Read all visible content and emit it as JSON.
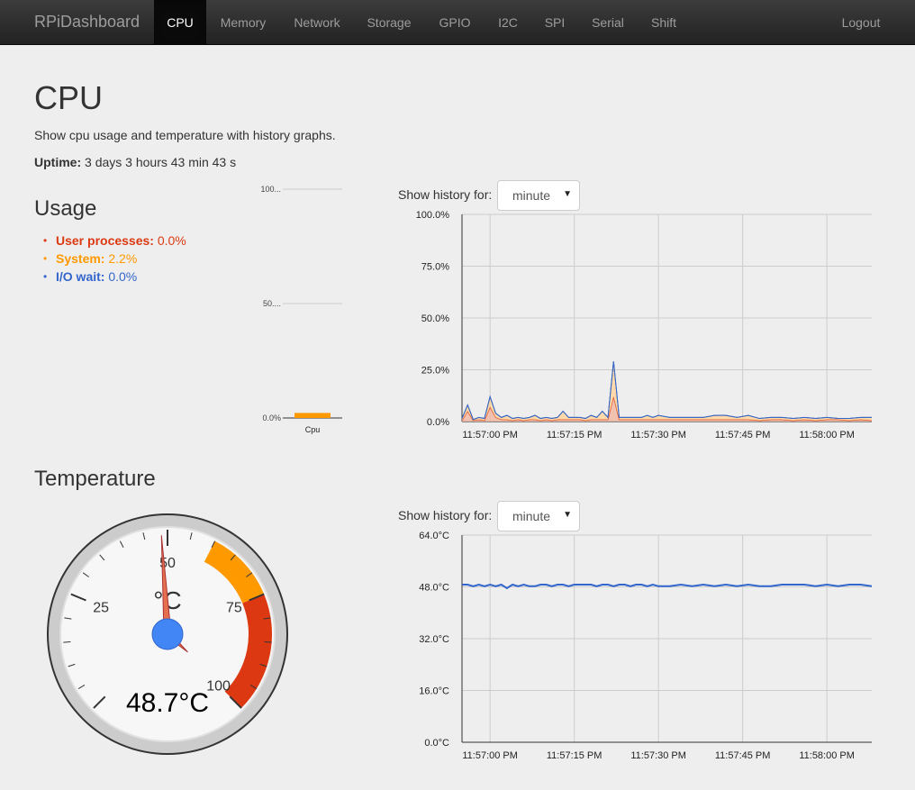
{
  "navbar": {
    "brand": "RPiDashboard",
    "items": [
      "CPU",
      "Memory",
      "Network",
      "Storage",
      "GPIO",
      "I2C",
      "SPI",
      "Serial",
      "Shift"
    ],
    "active": "CPU",
    "logout": "Logout"
  },
  "page": {
    "title": "CPU",
    "description": "Show cpu usage and temperature with history graphs.",
    "uptime_label": "Uptime:",
    "uptime_value": "3 days 3 hours 43 min 43 s"
  },
  "usage": {
    "heading": "Usage",
    "items": [
      {
        "label": "User processes:",
        "value": "0.0%"
      },
      {
        "label": "System:",
        "value": "2.2%"
      },
      {
        "label": "I/O wait:",
        "value": "0.0%"
      }
    ]
  },
  "temperature": {
    "heading": "Temperature"
  },
  "history": {
    "label": "Show history for:",
    "cpu_select": "minute",
    "temp_select": "minute"
  },
  "colors": {
    "user": "#dc3912",
    "system": "#ff9900",
    "io": "#3366cc",
    "navbar": "#222222",
    "background": "#eeeeee"
  },
  "chart_data": [
    {
      "type": "bar",
      "categories": [
        "Cpu"
      ],
      "values": [
        2.2
      ],
      "tick_labels": [
        "100...",
        "50....",
        "0.0%"
      ],
      "ylim": [
        0,
        100
      ]
    },
    {
      "type": "area",
      "x": [
        "11:56:55 PM",
        "11:56:56 PM",
        "11:56:57 PM",
        "11:56:58 PM",
        "11:56:59 PM",
        "11:57:00 PM",
        "11:57:01 PM",
        "11:57:02 PM",
        "11:57:03 PM",
        "11:57:04 PM",
        "11:57:05 PM",
        "11:57:06 PM",
        "11:57:07 PM",
        "11:57:08 PM",
        "11:57:09 PM",
        "11:57:10 PM",
        "11:57:11 PM",
        "11:57:12 PM",
        "11:57:13 PM",
        "11:57:14 PM",
        "11:57:15 PM",
        "11:57:16 PM",
        "11:57:17 PM",
        "11:57:18 PM",
        "11:57:19 PM",
        "11:57:20 PM",
        "11:57:21 PM",
        "11:57:22 PM",
        "11:57:23 PM",
        "11:57:24 PM",
        "11:57:25 PM",
        "11:57:26 PM",
        "11:57:27 PM",
        "11:57:28 PM",
        "11:57:29 PM",
        "11:57:30 PM",
        "11:57:32 PM",
        "11:57:34 PM",
        "11:57:36 PM",
        "11:57:38 PM",
        "11:57:40 PM",
        "11:57:42 PM",
        "11:57:44 PM",
        "11:57:46 PM",
        "11:57:48 PM",
        "11:57:50 PM",
        "11:57:52 PM",
        "11:57:54 PM",
        "11:57:56 PM",
        "11:57:58 PM",
        "11:58:00 PM",
        "11:58:02 PM",
        "11:58:04 PM",
        "11:58:06 PM",
        "11:58:08 PM"
      ],
      "series": [
        {
          "name": "User processes",
          "values": [
            0.5,
            5,
            0.5,
            1,
            0.5,
            7,
            2,
            1,
            1,
            0.5,
            1,
            0.5,
            1,
            1,
            0.5,
            1,
            0.5,
            1,
            1,
            1,
            1,
            1,
            0.5,
            1,
            1,
            1,
            1,
            12,
            1,
            1,
            1,
            1,
            1,
            1,
            1,
            1,
            1,
            1,
            1,
            1,
            1,
            1,
            1,
            1,
            0.5,
            1,
            1,
            0.5,
            1,
            0.5,
            1,
            1,
            0.5,
            1,
            0.5
          ]
        },
        {
          "name": "System",
          "values": [
            1,
            3,
            0.5,
            1,
            1,
            5,
            2,
            1,
            2,
            1,
            1,
            1,
            1,
            2,
            1,
            1,
            1,
            1,
            4,
            1,
            1,
            1,
            1,
            2,
            1,
            4,
            1,
            17,
            1,
            1,
            1,
            1,
            1,
            2,
            1,
            2,
            1,
            1,
            1,
            1,
            2,
            2,
            1,
            2,
            1,
            1,
            1,
            1,
            1,
            1,
            1,
            0.5,
            1,
            1,
            1.5
          ]
        },
        {
          "name": "I/O wait",
          "values": [
            0,
            0,
            0,
            0,
            0,
            0,
            0,
            0,
            0,
            0,
            0,
            0,
            0,
            0,
            0,
            0,
            0,
            0,
            0,
            0,
            0,
            0,
            0,
            0,
            0,
            0,
            0,
            0,
            0,
            0,
            0,
            0,
            0,
            0,
            0,
            0,
            0,
            0,
            0,
            0,
            0,
            0,
            0,
            0,
            0,
            0,
            0,
            0,
            0,
            0,
            0,
            0,
            0,
            0,
            0
          ]
        }
      ],
      "y_ticks": [
        "100.0%",
        "75.0%",
        "50.0%",
        "25.0%",
        "0.0%"
      ],
      "ylim": [
        0,
        100
      ],
      "x_ticks": [
        "11:57:00 PM",
        "11:57:15 PM",
        "11:57:30 PM",
        "11:57:45 PM",
        "11:58:00 PM"
      ]
    },
    {
      "type": "gauge",
      "value": 48.7,
      "unit": "°C",
      "min": 0,
      "max": 100,
      "major_labels": [
        "25",
        "50",
        "75",
        "100"
      ],
      "display_value": "48.7°C",
      "bands": [
        {
          "from": 75,
          "to": 100,
          "color": "#dc3912"
        },
        {
          "from": 60,
          "to": 75,
          "color": "#ff9900"
        }
      ]
    },
    {
      "type": "line",
      "x": [
        "11:56:55 PM",
        "11:56:56 PM",
        "11:56:57 PM",
        "11:56:58 PM",
        "11:56:59 PM",
        "11:57:00 PM",
        "11:57:01 PM",
        "11:57:02 PM",
        "11:57:03 PM",
        "11:57:04 PM",
        "11:57:05 PM",
        "11:57:06 PM",
        "11:57:07 PM",
        "11:57:08 PM",
        "11:57:09 PM",
        "11:57:10 PM",
        "11:57:11 PM",
        "11:57:12 PM",
        "11:57:13 PM",
        "11:57:14 PM",
        "11:57:15 PM",
        "11:57:16 PM",
        "11:57:17 PM",
        "11:57:18 PM",
        "11:57:19 PM",
        "11:57:20 PM",
        "11:57:21 PM",
        "11:57:22 PM",
        "11:57:23 PM",
        "11:57:24 PM",
        "11:57:25 PM",
        "11:57:26 PM",
        "11:57:27 PM",
        "11:57:28 PM",
        "11:57:29 PM",
        "11:57:30 PM",
        "11:57:32 PM",
        "11:57:34 PM",
        "11:57:36 PM",
        "11:57:38 PM",
        "11:57:40 PM",
        "11:57:42 PM",
        "11:57:44 PM",
        "11:57:46 PM",
        "11:57:48 PM",
        "11:57:50 PM",
        "11:57:52 PM",
        "11:57:54 PM",
        "11:57:56 PM",
        "11:57:58 PM",
        "11:58:00 PM",
        "11:58:02 PM",
        "11:58:04 PM",
        "11:58:06 PM",
        "11:58:08 PM"
      ],
      "series": [
        {
          "name": "Temperature",
          "values": [
            48.7,
            48.7,
            48.2,
            48.7,
            48.2,
            48.7,
            48.2,
            48.7,
            47.6,
            48.7,
            48.2,
            48.7,
            48.2,
            48.2,
            48.7,
            48.7,
            48.2,
            48.7,
            48.7,
            48.2,
            48.7,
            48.7,
            48.7,
            48.7,
            48.2,
            48.7,
            48.7,
            48.2,
            48.7,
            48.7,
            48.2,
            48.7,
            48.7,
            48.2,
            48.7,
            48.2,
            48.2,
            48.7,
            48.2,
            48.7,
            48.2,
            48.7,
            48.2,
            48.7,
            48.2,
            48.2,
            48.7,
            48.7,
            48.7,
            48.2,
            48.7,
            48.2,
            48.7,
            48.7,
            48.2
          ]
        }
      ],
      "y_ticks": [
        "64.0°C",
        "48.0°C",
        "32.0°C",
        "16.0°C",
        "0.0°C"
      ],
      "ylim": [
        0,
        64
      ],
      "x_ticks": [
        "11:57:00 PM",
        "11:57:15 PM",
        "11:57:30 PM",
        "11:57:45 PM",
        "11:58:00 PM"
      ]
    }
  ]
}
